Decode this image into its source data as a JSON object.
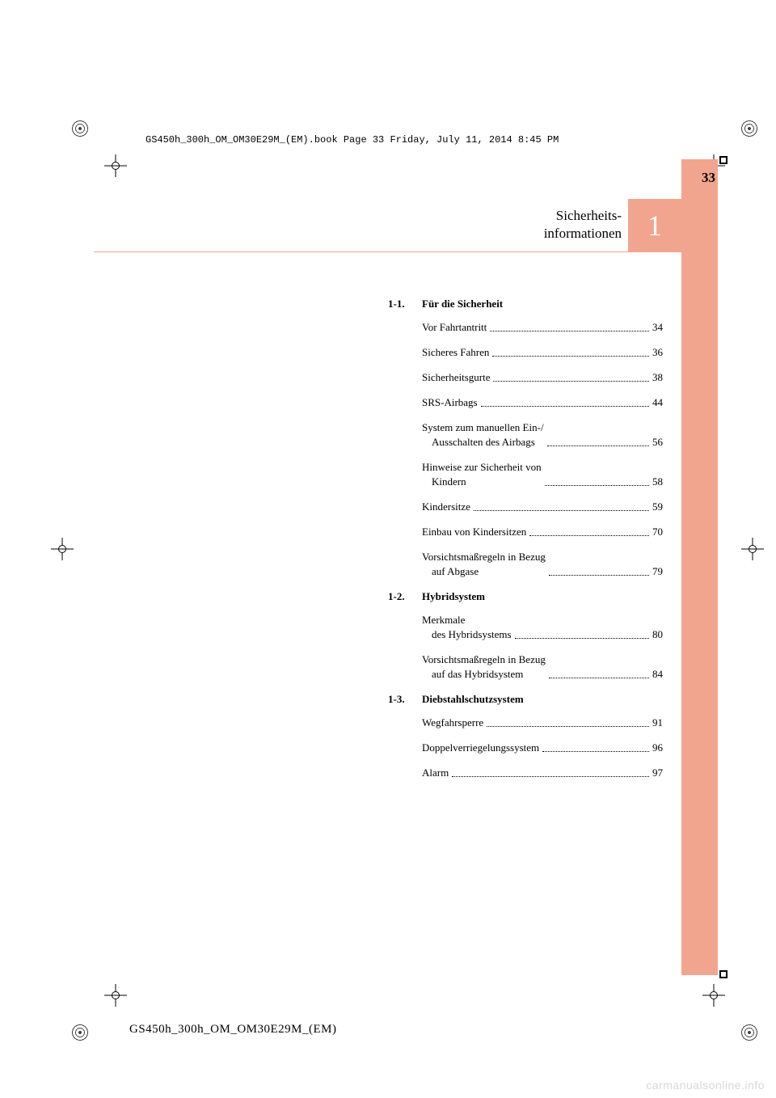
{
  "print_header": "GS450h_300h_OM_OM30E29M_(EM).book  Page 33  Friday, July 11, 2014  8:45 PM",
  "page_number": "33",
  "chapter": {
    "number": "1",
    "title_line1": "Sicherheits-",
    "title_line2": "informationen"
  },
  "colors": {
    "accent": "#f1a58f",
    "text": "#000000",
    "tab_text": "#ffffff",
    "watermark": "#d8d8d8",
    "background": "#ffffff"
  },
  "toc": [
    {
      "num": "1-1.",
      "title": "Für die Sicherheit",
      "entries": [
        {
          "label": "Vor Fahrtantritt",
          "page": "34"
        },
        {
          "label": "Sicheres Fahren",
          "page": "36"
        },
        {
          "label": "Sicherheitsgurte",
          "page": "38"
        },
        {
          "label": "SRS-Airbags",
          "page": "44"
        },
        {
          "label": "System zum manuellen Ein-/",
          "label2": "Ausschalten des Airbags",
          "page": "56"
        },
        {
          "label": "Hinweise zur Sicherheit von",
          "label2": "Kindern",
          "page": "58"
        },
        {
          "label": "Kindersitze",
          "page": "59"
        },
        {
          "label": "Einbau von Kindersitzen",
          "page": "70"
        },
        {
          "label": "Vorsichtsmaßregeln in Bezug",
          "label2": "auf Abgase",
          "page": "79"
        }
      ]
    },
    {
      "num": "1-2.",
      "title": "Hybridsystem",
      "entries": [
        {
          "label": "Merkmale",
          "label2": "des Hybridsystems",
          "page": "80"
        },
        {
          "label": "Vorsichtsmaßregeln in Bezug",
          "label2": "auf das Hybridsystem",
          "page": "84"
        }
      ]
    },
    {
      "num": "1-3.",
      "title": "Diebstahlschutzsystem",
      "entries": [
        {
          "label": "Wegfahrsperre",
          "page": "91"
        },
        {
          "label": "Doppelverriegelungssystem",
          "page": "96"
        },
        {
          "label": "Alarm",
          "page": "97"
        }
      ]
    }
  ],
  "footer_code": "GS450h_300h_OM_OM30E29M_(EM)",
  "watermark": "carmanualsonline.info"
}
